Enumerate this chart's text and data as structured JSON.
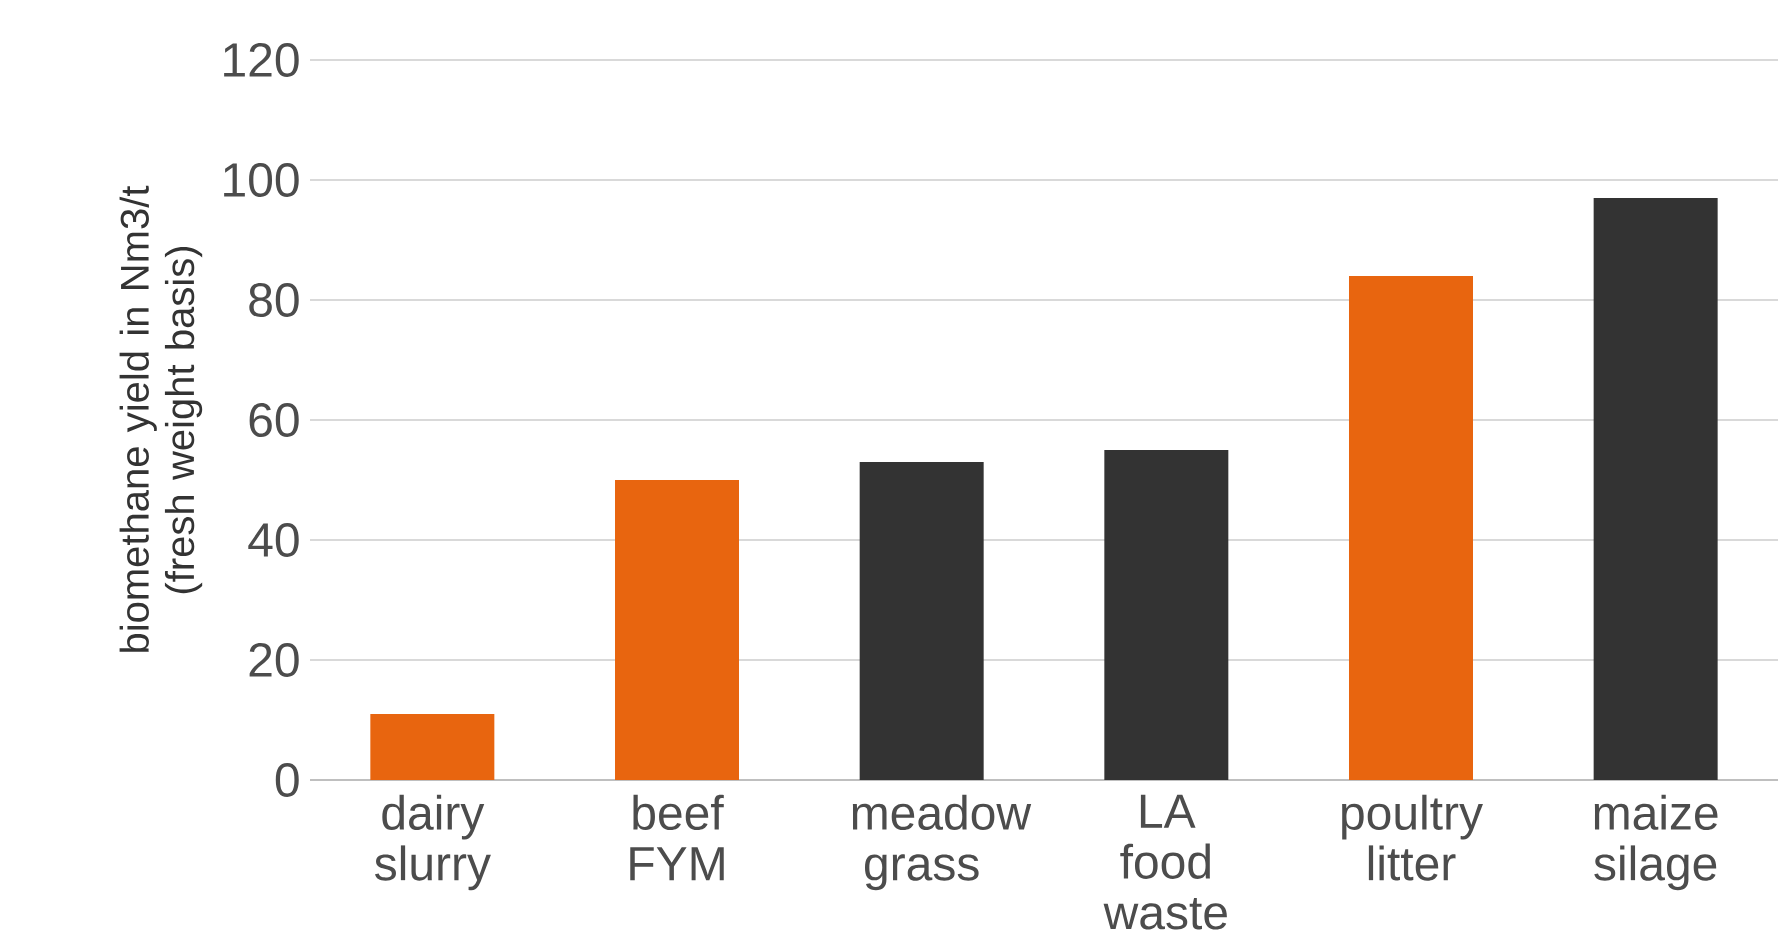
{
  "chart_data": {
    "type": "bar",
    "ylabel": "biomethane yield in Nm3/t (fresh weight basis)",
    "categories": [
      "dairy slurry",
      "beef FYM",
      "meadow grass",
      "LA food waste",
      "poultry litter",
      "maize silage"
    ],
    "values": [
      11,
      50,
      53,
      55,
      84,
      97
    ],
    "colors": [
      "#e8650f",
      "#e8650f",
      "#333333",
      "#333333",
      "#e8650f",
      "#333333"
    ],
    "ylim": [
      0,
      120
    ],
    "yticks": [
      0,
      20,
      40,
      60,
      80,
      100,
      120
    ],
    "grid": "y"
  }
}
